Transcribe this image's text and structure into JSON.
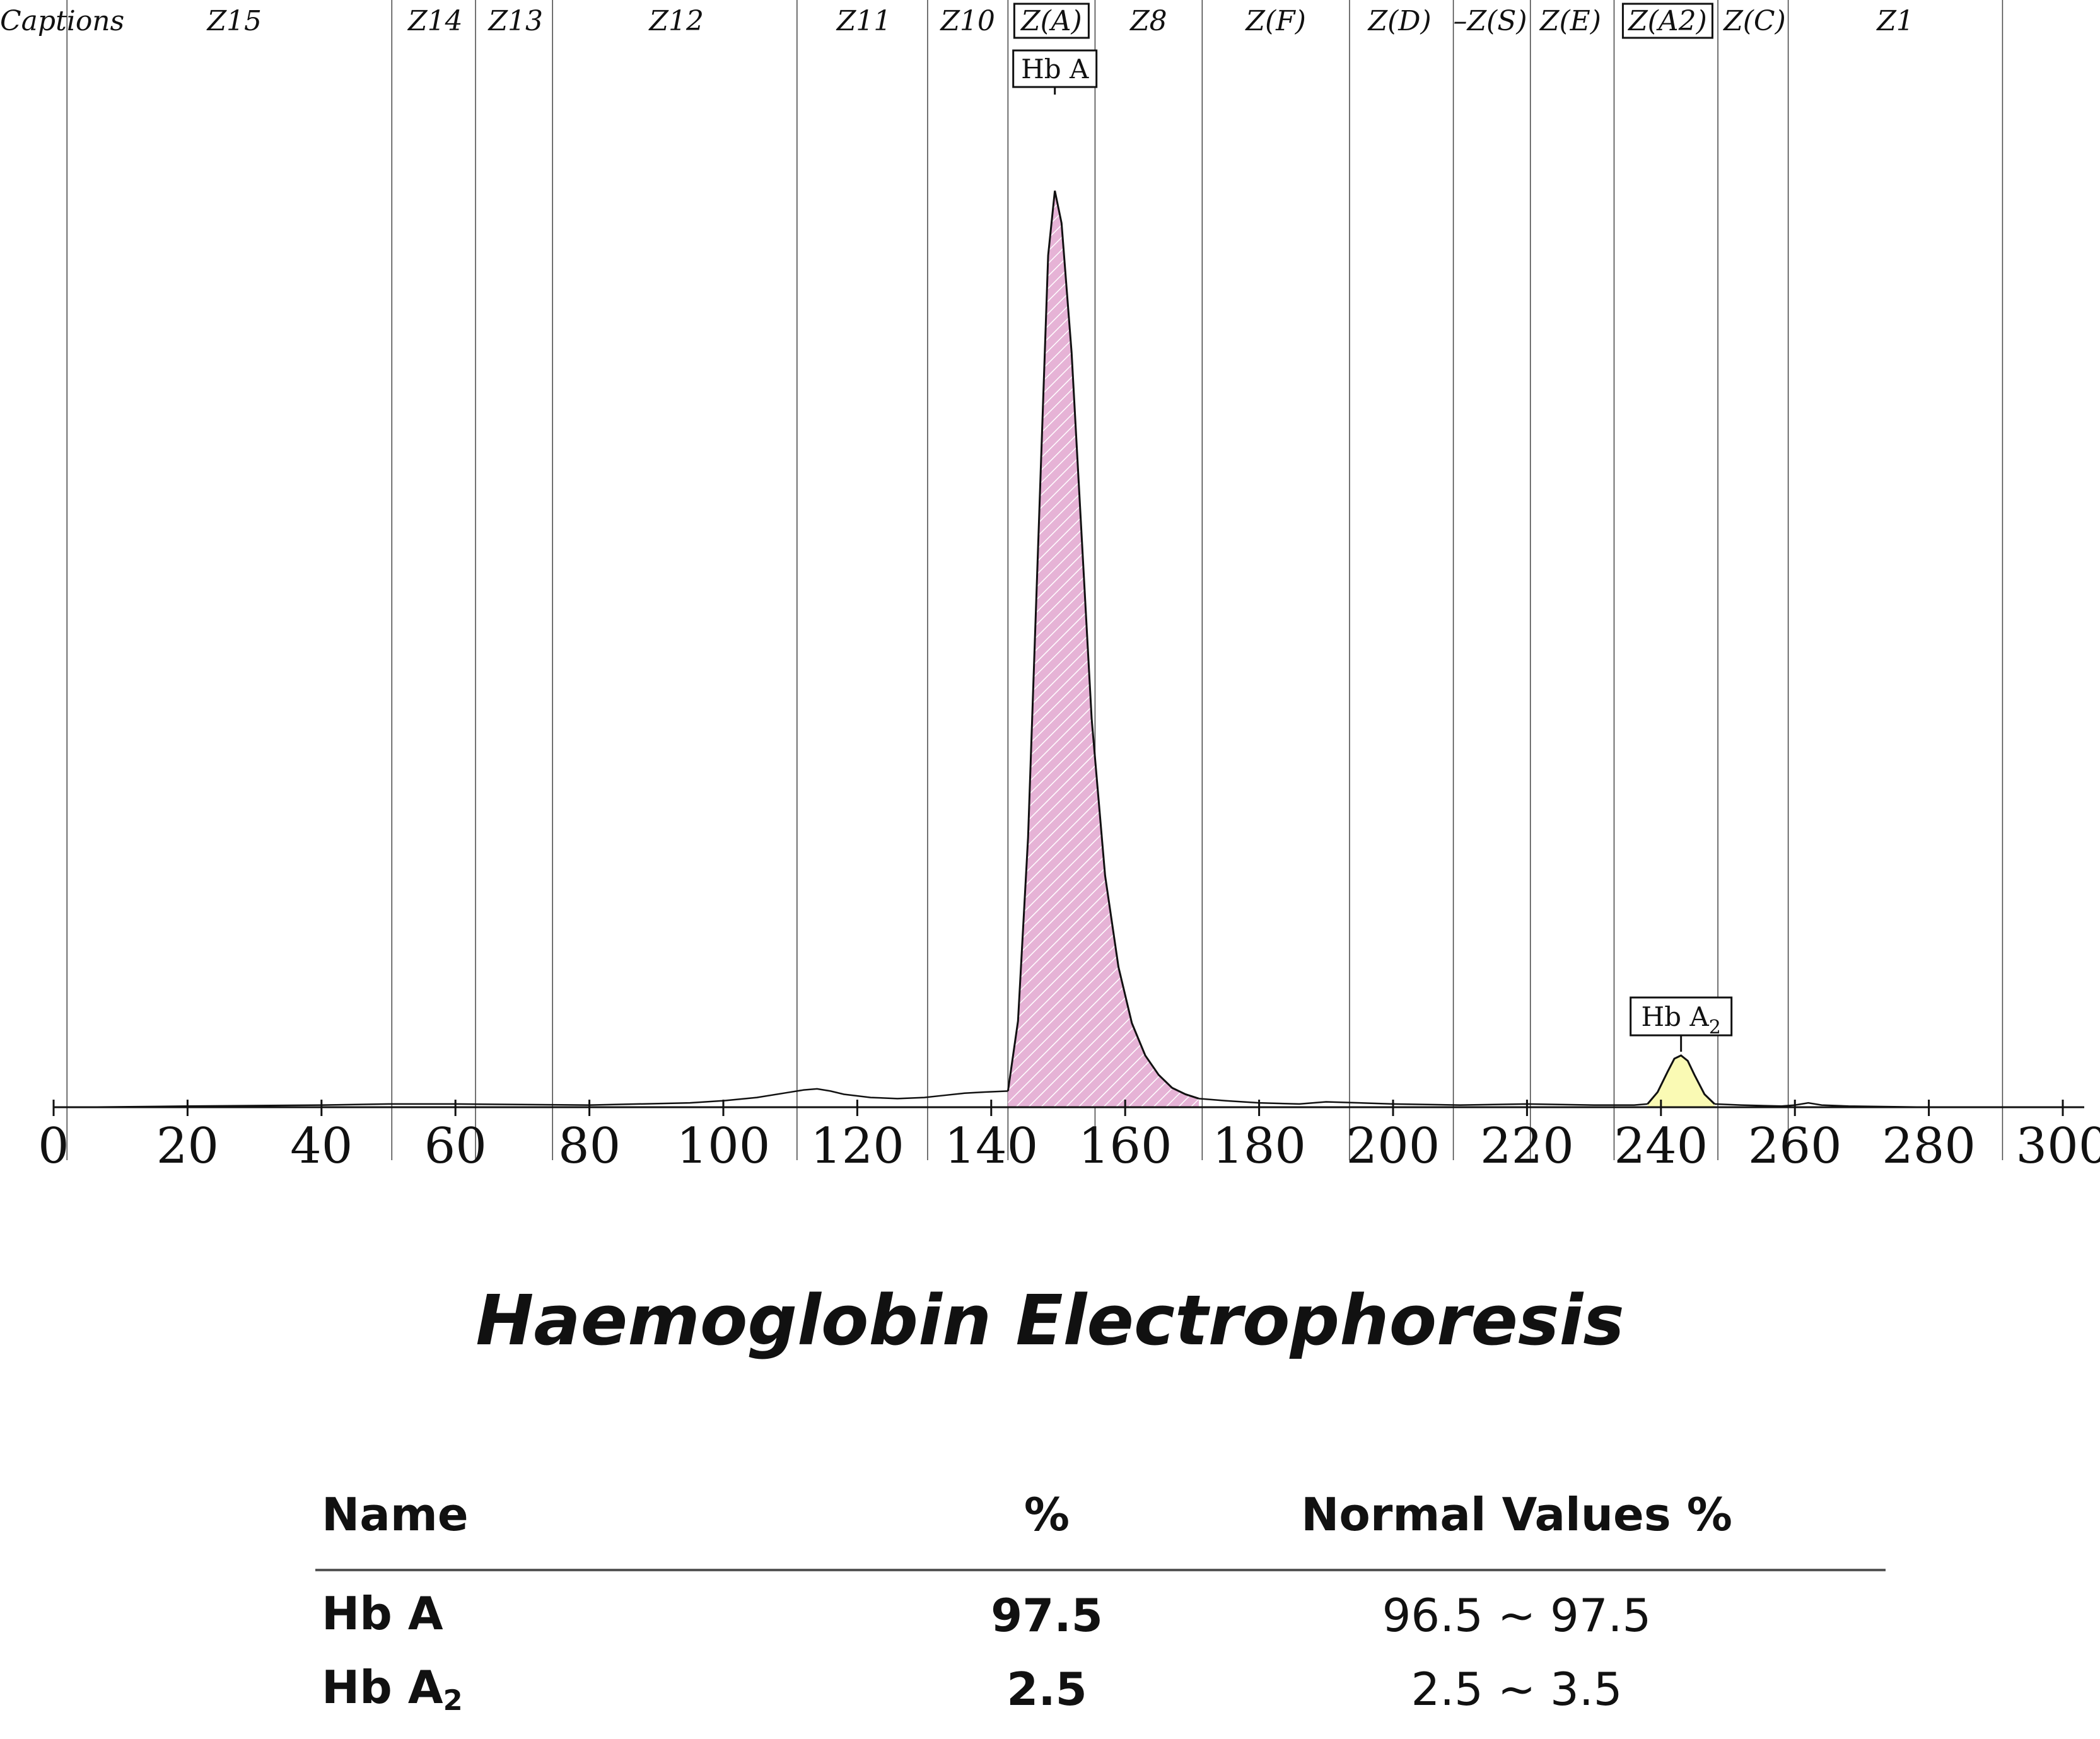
{
  "chart_data": {
    "type": "area",
    "xlim": [
      0,
      300
    ],
    "x_ticks": [
      "0",
      "20",
      "40",
      "60",
      "80",
      "100",
      "120",
      "140",
      "160",
      "180",
      "200",
      "220",
      "240",
      "260",
      "280",
      "300"
    ],
    "captions_label": "Captions",
    "zone_boundaries_x": [
      2,
      50.5,
      63,
      74.5,
      111,
      130.5,
      142.5,
      155.5,
      171.5,
      193.5,
      209,
      220.5,
      233,
      248.5,
      259,
      291
    ],
    "zones": [
      {
        "label": "Z15",
        "x": 27,
        "boxed": false
      },
      {
        "label": "Z14",
        "x": 57,
        "boxed": false
      },
      {
        "label": "Z13",
        "x": 69,
        "boxed": false
      },
      {
        "label": "Z12",
        "x": 93,
        "boxed": false
      },
      {
        "label": "Z11",
        "x": 121,
        "boxed": false
      },
      {
        "label": "Z10",
        "x": 136.5,
        "boxed": false
      },
      {
        "label": "Z(A)",
        "x": 149,
        "boxed": true
      },
      {
        "label": "Z8",
        "x": 163.5,
        "boxed": false
      },
      {
        "label": "Z(F)",
        "x": 182.5,
        "boxed": false
      },
      {
        "label": "Z(D)",
        "x": 201,
        "boxed": false
      },
      {
        "label": "–Z(S)",
        "x": 214.5,
        "boxed": false
      },
      {
        "label": "Z(E)",
        "x": 226.5,
        "boxed": false
      },
      {
        "label": "Z(A2)",
        "x": 241,
        "boxed": true
      },
      {
        "label": "Z(C)",
        "x": 254,
        "boxed": false
      },
      {
        "label": "Z1",
        "x": 275,
        "boxed": false
      }
    ],
    "series": [
      {
        "name": "Hb A",
        "peak_x": 149.5,
        "fill_color": "#e6b3d6",
        "x": [
          142.5,
          144,
          145.5,
          147,
          148.5,
          149.5,
          150.5,
          152,
          153.5,
          155,
          157,
          159,
          161,
          163,
          165,
          167,
          169,
          171
        ],
        "y": [
          15,
          80,
          250,
          520,
          790,
          850,
          820,
          700,
          530,
          360,
          215,
          130,
          78,
          48,
          30,
          18,
          12,
          8
        ]
      },
      {
        "name": "Hb A2",
        "peak_x": 243,
        "fill_color": "#fafab4",
        "x": [
          238,
          239.5,
          241,
          242,
          243,
          244,
          245,
          246.5,
          248
        ],
        "y": [
          3,
          14,
          33,
          45,
          48,
          43,
          30,
          12,
          3
        ]
      }
    ],
    "baseline_trace": {
      "x": [
        4,
        20,
        40,
        50,
        60,
        80,
        95,
        100,
        105,
        110,
        112,
        114,
        116,
        118,
        122,
        126,
        130,
        133,
        136,
        139,
        142.5,
        171,
        175,
        180,
        186,
        190,
        195,
        200,
        210,
        220,
        230,
        236,
        238,
        248,
        252,
        258,
        260,
        262,
        264,
        268,
        280,
        291,
        300
      ],
      "y": [
        0,
        1,
        2,
        3,
        3,
        2,
        4,
        6,
        9,
        14,
        16,
        17,
        15,
        12,
        9,
        8,
        9,
        11,
        13,
        14,
        15,
        8,
        6,
        4,
        3,
        5,
        4,
        3,
        2,
        3,
        2,
        2,
        3,
        3,
        2,
        1,
        2,
        4,
        2,
        1,
        0,
        0,
        0
      ]
    }
  },
  "peak_labels": {
    "hb_a": "Hb A",
    "hb_a2_base": "Hb A",
    "hb_a2_sub": "2"
  },
  "title": "Haemoglobin Electrophoresis",
  "results_table": {
    "headers": [
      "Name",
      "%",
      "Normal Values %"
    ],
    "rows": [
      {
        "name": "Hb A",
        "name_sub": "",
        "percent": "97.5",
        "normal": "96.5 ~ 97.5"
      },
      {
        "name": "Hb A",
        "name_sub": "2",
        "percent": "2.5",
        "normal": "2.5 ~  3.5"
      }
    ]
  }
}
